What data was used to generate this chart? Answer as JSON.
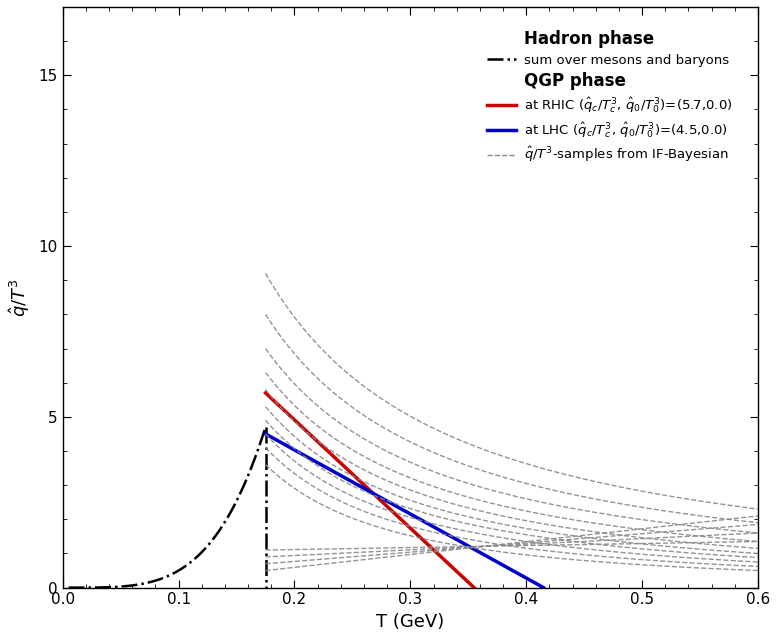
{
  "xlabel": "T (GeV)",
  "ylabel": "$\\hat{q}/T^3$",
  "xlim": [
    0.0,
    0.6
  ],
  "ylim": [
    0.0,
    17
  ],
  "yticks": [
    0,
    5,
    10,
    15
  ],
  "xticks": [
    0.0,
    0.1,
    0.2,
    0.3,
    0.4,
    0.5,
    0.6
  ],
  "Tc": 0.175,
  "qhat_c_RHIC": 5.7,
  "qhat_c_LHC": 4.5,
  "rhic_zero_T": 0.355,
  "lhc_zero_T": 0.415,
  "hadron_color": "#000000",
  "rhic_color": "#cc0000",
  "lhc_color": "#0000cc",
  "bayesian_color": "#888888",
  "hadron_peak": 4.7,
  "hadron_power": 4.0,
  "legend_labels": {
    "hadron_phase": "Hadron phase",
    "hadron_curve": "sum over mesons and baryons",
    "qgp_phase": "QGP phase",
    "rhic": "at RHIC ($\\hat{q}_c/T_c^3$, $\\hat{q}_0/T_0^3$)=(5.7,0.0)",
    "lhc": "at LHC ($\\hat{q}_c/T_c^3$, $\\hat{q}_0/T_0^3$)=(4.5,0.0)",
    "bayesian": "$\\hat{q}/T^3$-samples from IF-Bayesian"
  },
  "bayesian_curves": [
    [
      9.2,
      2.3
    ],
    [
      8.0,
      1.9
    ],
    [
      7.0,
      1.6
    ],
    [
      6.3,
      1.35
    ],
    [
      5.8,
      1.15
    ],
    [
      5.3,
      1.0
    ],
    [
      4.9,
      0.88
    ],
    [
      4.5,
      0.75
    ],
    [
      4.1,
      0.62
    ],
    [
      3.6,
      0.5
    ],
    [
      0.5,
      2.1
    ],
    [
      0.7,
      1.85
    ],
    [
      0.9,
      1.6
    ],
    [
      1.1,
      1.35
    ]
  ],
  "background_color": "#ffffff"
}
